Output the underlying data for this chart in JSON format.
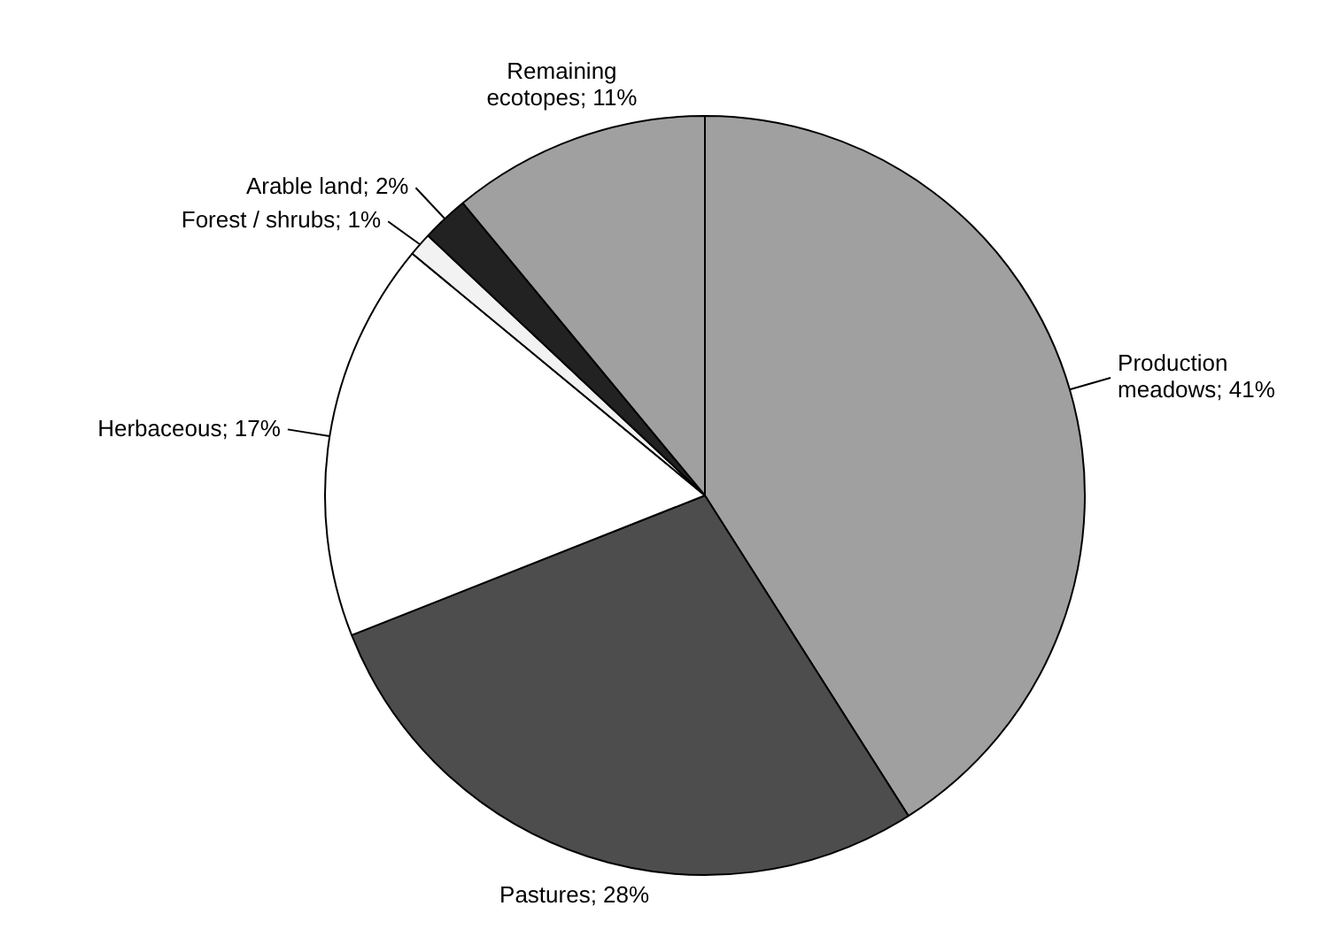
{
  "chart_data": {
    "type": "pie",
    "categories": [
      "Production meadows",
      "Pastures",
      "Herbaceous",
      "Forest / shrubs",
      "Arable land",
      "Remaining ecotopes"
    ],
    "values": [
      41,
      28,
      17,
      1,
      2,
      11
    ],
    "value_labels": [
      "41%",
      "28%",
      "17%",
      "1%",
      "2%",
      "11%"
    ],
    "colors": [
      "#a0a0a0",
      "#4d4d4d",
      "#ffffff",
      "#f2f2f2",
      "#222222",
      "#a0a0a0"
    ],
    "legend": false
  }
}
